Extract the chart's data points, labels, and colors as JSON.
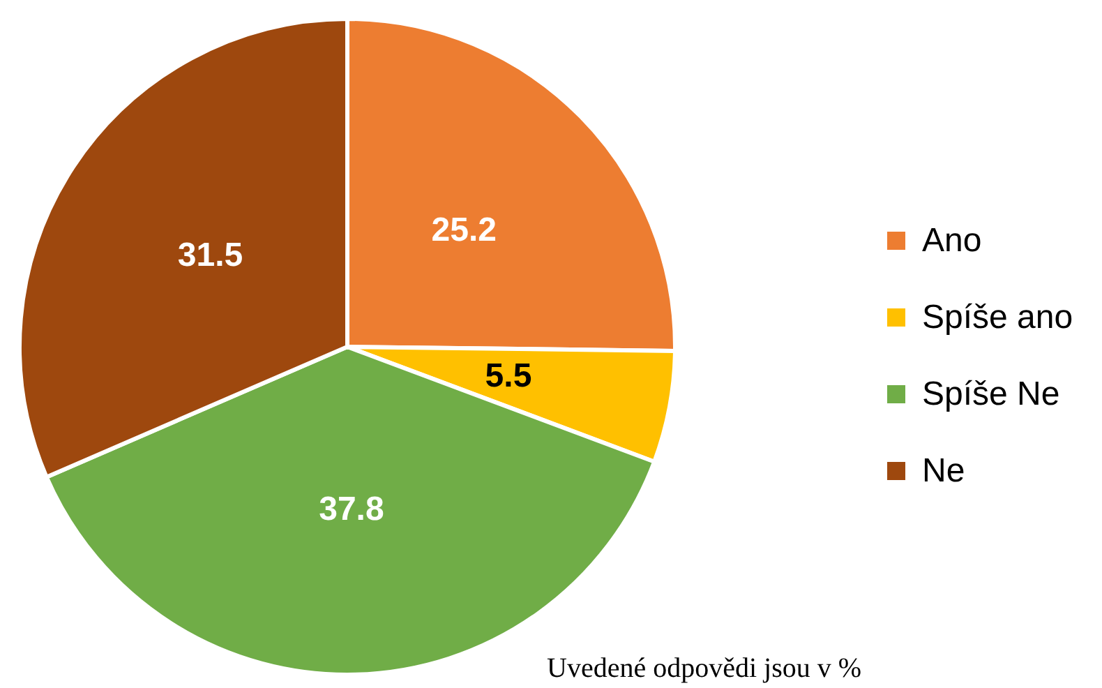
{
  "chart_data": {
    "type": "pie",
    "categories": [
      "Ano",
      "Spíše ano",
      "Spíše Ne",
      "Ne"
    ],
    "values": [
      25.2,
      5.5,
      37.8,
      31.5
    ],
    "colors": [
      "#ed7d31",
      "#ffc000",
      "#70ad47",
      "#9e480e"
    ],
    "data_labels": true,
    "legend": "right",
    "annotations": [
      "Uvedené odpovědi jsou v %"
    ]
  }
}
